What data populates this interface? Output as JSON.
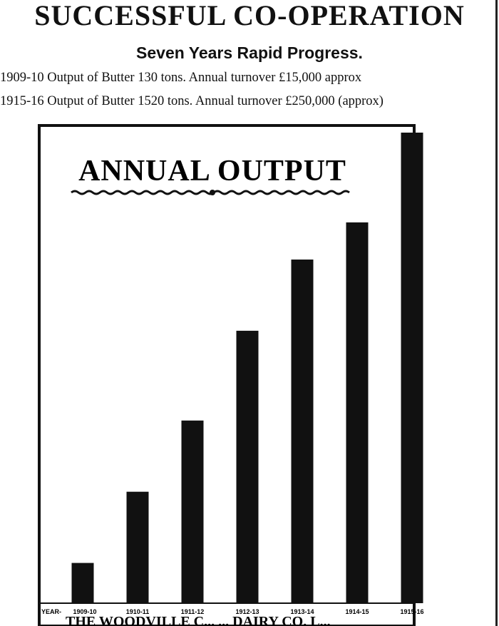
{
  "page": {
    "headline": "SUCCESSFUL CO-OPERATION",
    "subheadline": "Seven Years Rapid Progress.",
    "stat_lines": [
      "1909-10 Output of Butter 130 tons. Annual turnover £15,000 approx",
      "1915-16 Output of Butter 1520 tons. Annual turnover £250,000 (approx)"
    ]
  },
  "chart_data": {
    "type": "bar",
    "title": "ANNUAL OUTPUT",
    "xlabel": "",
    "ylabel": "",
    "axis_prefix": "YEAR-",
    "categories": [
      "1909-10",
      "1910-11",
      "1911-12",
      "1912-13",
      "1913-14",
      "1914-15",
      "1915-16"
    ],
    "values": [
      130,
      360,
      590,
      880,
      1110,
      1230,
      1520
    ],
    "ylim": [
      0,
      1520
    ],
    "grid": false,
    "bar_color": "#111111",
    "footer_text": "THE WOODVILLE C... ... DAIRY CO. L..."
  }
}
